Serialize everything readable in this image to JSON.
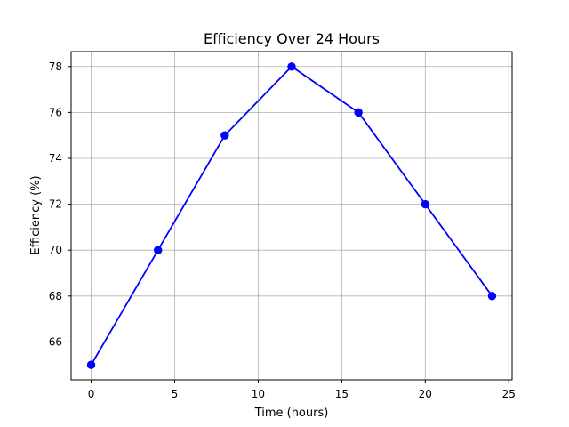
{
  "chart_data": {
    "type": "line",
    "title": "Efficiency Over 24 Hours",
    "xlabel": "Time (hours)",
    "ylabel": "Efficiency (%)",
    "x": [
      0,
      4,
      8,
      12,
      16,
      20,
      24
    ],
    "series": [
      {
        "values": [
          65,
          70,
          75,
          78,
          76,
          72,
          68
        ],
        "color": "#0000ff",
        "marker": "circle"
      }
    ],
    "xlim": [
      -1.2,
      25.2
    ],
    "ylim": [
      64.35,
      78.65
    ],
    "xticks": [
      0,
      5,
      10,
      15,
      20,
      25
    ],
    "yticks": [
      66,
      68,
      70,
      72,
      74,
      76,
      78
    ],
    "grid": true,
    "legend": "none"
  }
}
